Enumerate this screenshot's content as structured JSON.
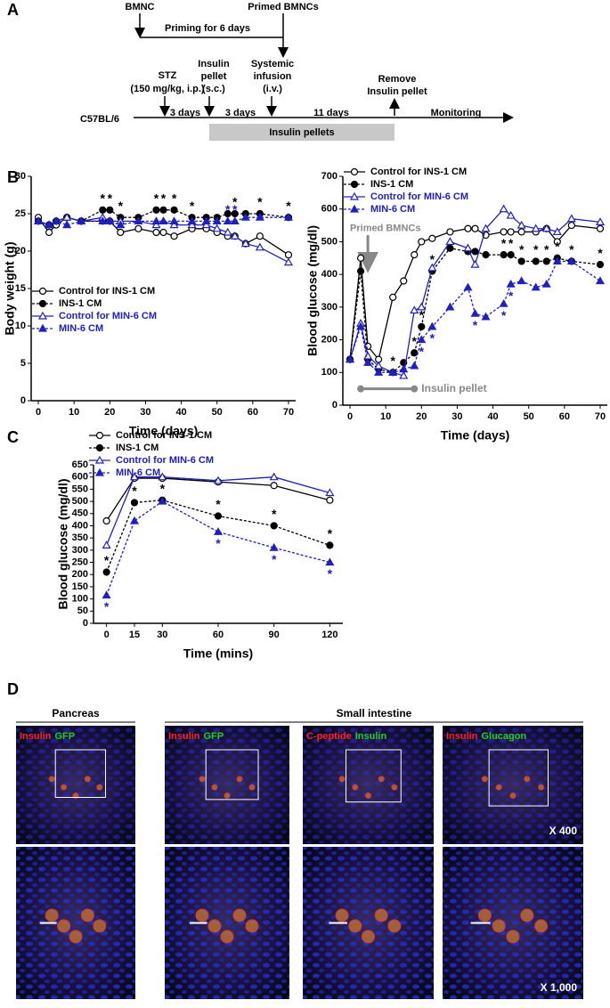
{
  "panel_labels": [
    "A",
    "B",
    "C",
    "D"
  ],
  "timeline": {
    "bmnc": "BMNC",
    "primed": "Primed BMNCs",
    "priming": "Priming for 6 days",
    "stz": [
      "STZ",
      "(150 mg/kg, i.p.)"
    ],
    "pellet": [
      "Insulin",
      "pellet",
      "(s.c.)"
    ],
    "infusion": [
      "Systemic",
      "infusion",
      "(i.v.)"
    ],
    "remove": [
      "Remove",
      "Insulin pellet"
    ],
    "strain": "C57BL/6",
    "intervals": [
      "3 days",
      "3 days",
      "11 days"
    ],
    "monitoring": "Monitoring",
    "pellets_bar": "Insulin pellets"
  },
  "chart_data": [
    {
      "type": "line",
      "y_label": "Body weight (g)",
      "x_label": "Time (days)",
      "xlim": [
        -2,
        72
      ],
      "ylim": [
        0,
        30
      ],
      "xticks": [
        0,
        10,
        20,
        30,
        40,
        50,
        60,
        70
      ],
      "yticks": [
        0,
        5,
        10,
        15,
        20,
        25,
        30
      ],
      "x": [
        0,
        3,
        5,
        8,
        12,
        18,
        20,
        23,
        28,
        33,
        35,
        38,
        43,
        47,
        50,
        53,
        55,
        58,
        62,
        70
      ],
      "series": [
        {
          "name": "Control for INS-1 CM",
          "color": "#000000",
          "marker": "circle",
          "fill": "open",
          "dash": false,
          "values": [
            24.5,
            22.5,
            23.5,
            24.5,
            24,
            24,
            24,
            22.5,
            23,
            22.5,
            22.5,
            22,
            23,
            23,
            22.5,
            22,
            22,
            21,
            22,
            19.5
          ]
        },
        {
          "name": "INS-1 CM",
          "color": "#000000",
          "marker": "circle",
          "fill": "filled",
          "dash": true,
          "values": [
            24,
            23.5,
            24,
            24.5,
            24,
            25.5,
            25.5,
            24.5,
            24.5,
            25.5,
            25.5,
            25.5,
            24.5,
            24.5,
            24.5,
            25,
            25,
            25,
            25,
            24.5
          ],
          "value_labels": [
            null,
            null,
            null,
            null,
            null,
            "*",
            "*",
            "*",
            null,
            "*",
            "*",
            "*",
            "*",
            null,
            null,
            null,
            "*",
            null,
            "*",
            "*"
          ]
        },
        {
          "name": "Control for MIN-6 CM",
          "color": "#2020c0",
          "marker": "triangle",
          "fill": "open",
          "dash": false,
          "values": [
            24,
            23.5,
            24,
            24.5,
            24,
            24.5,
            24,
            24,
            24,
            23.5,
            24,
            23.5,
            23.5,
            23.5,
            23,
            22.5,
            22,
            21,
            20.5,
            18.5
          ]
        },
        {
          "name": "MIN-6 CM",
          "color": "#2020c0",
          "marker": "triangle",
          "fill": "filled",
          "dash": true,
          "values": [
            24,
            23.5,
            24,
            23.5,
            24,
            24,
            24,
            23.5,
            24,
            24,
            24,
            24,
            24,
            24,
            24,
            24,
            24,
            24.5,
            24.5,
            24.5
          ],
          "value_labels": [
            null,
            null,
            null,
            null,
            null,
            null,
            null,
            null,
            null,
            null,
            null,
            null,
            null,
            null,
            null,
            "*",
            "*",
            null,
            null,
            null
          ]
        }
      ]
    },
    {
      "type": "line",
      "y_label": "Blood glucose (mg/dl)",
      "x_label": "Time (days)",
      "xlim": [
        -2,
        72
      ],
      "ylim": [
        0,
        700
      ],
      "xticks": [
        0,
        10,
        20,
        30,
        40,
        50,
        60,
        70
      ],
      "yticks": [
        0,
        100,
        200,
        300,
        400,
        500,
        600,
        700
      ],
      "annotations": [
        "Primed BMNCs",
        "Insulin pellet"
      ],
      "x": [
        0,
        3,
        5,
        8,
        12,
        15,
        18,
        20,
        23,
        28,
        33,
        35,
        38,
        43,
        45,
        48,
        52,
        55,
        58,
        62,
        70
      ],
      "series": [
        {
          "name": "Control for INS-1 CM",
          "color": "#000000",
          "marker": "circle",
          "fill": "open",
          "dash": false,
          "values": [
            140,
            450,
            180,
            140,
            330,
            380,
            460,
            500,
            510,
            530,
            540,
            540,
            520,
            530,
            530,
            530,
            530,
            540,
            500,
            550,
            540
          ]
        },
        {
          "name": "INS-1 CM",
          "color": "#000000",
          "marker": "circle",
          "fill": "filled",
          "dash": true,
          "values": [
            140,
            410,
            140,
            110,
            100,
            130,
            160,
            240,
            410,
            480,
            470,
            470,
            460,
            460,
            460,
            440,
            440,
            440,
            450,
            440,
            430
          ],
          "value_labels": [
            null,
            null,
            null,
            null,
            "*",
            null,
            "*",
            "*",
            "*",
            null,
            null,
            null,
            null,
            "*",
            "*",
            "*",
            "*",
            "*",
            "*",
            "*",
            "*"
          ]
        },
        {
          "name": "Control for MIN-6 CM",
          "color": "#2020c0",
          "marker": "triangle",
          "fill": "open",
          "dash": false,
          "values": [
            140,
            250,
            150,
            120,
            100,
            90,
            290,
            300,
            420,
            500,
            480,
            430,
            540,
            600,
            580,
            550,
            540,
            540,
            530,
            570,
            560
          ]
        },
        {
          "name": "MIN-6 CM",
          "color": "#2020c0",
          "marker": "triangle",
          "fill": "filled",
          "dash": true,
          "values": [
            140,
            240,
            130,
            100,
            100,
            110,
            120,
            200,
            240,
            300,
            360,
            280,
            270,
            310,
            370,
            380,
            360,
            370,
            440,
            440,
            380
          ],
          "value_labels": [
            null,
            null,
            null,
            null,
            null,
            null,
            null,
            "*",
            "*",
            null,
            null,
            "*",
            null,
            "*",
            "*",
            null,
            null,
            null,
            null,
            null,
            null
          ]
        }
      ]
    },
    {
      "type": "line",
      "y_label": "Blood glucose (mg/dl)",
      "x_label": "Time (mins)",
      "xlim": [
        -7,
        127
      ],
      "ylim": [
        0,
        650
      ],
      "xticks": [
        0,
        15,
        30,
        60,
        90,
        120
      ],
      "yticks": [
        0,
        50,
        100,
        150,
        200,
        250,
        300,
        350,
        400,
        450,
        500,
        550,
        600,
        650
      ],
      "x": [
        0,
        15,
        30,
        60,
        90,
        120
      ],
      "series": [
        {
          "name": "Control for INS-1 CM",
          "color": "#000000",
          "marker": "circle",
          "fill": "open",
          "dash": false,
          "values": [
            420,
            595,
            595,
            580,
            565,
            505
          ]
        },
        {
          "name": "INS-1 CM",
          "color": "#000000",
          "marker": "circle",
          "fill": "filled",
          "dash": true,
          "values": [
            210,
            495,
            505,
            440,
            400,
            320
          ],
          "value_labels": [
            "*",
            "*",
            "*",
            "*",
            "*",
            "*"
          ]
        },
        {
          "name": "Control for MIN-6 CM",
          "color": "#2020c0",
          "marker": "triangle",
          "fill": "open",
          "dash": false,
          "values": [
            320,
            600,
            600,
            585,
            600,
            535
          ]
        },
        {
          "name": "MIN-6 CM",
          "color": "#2020c0",
          "marker": "triangle",
          "fill": "filled",
          "dash": true,
          "values": [
            115,
            420,
            500,
            375,
            310,
            250
          ],
          "value_labels": [
            "*",
            null,
            null,
            "*",
            "*",
            "*"
          ]
        }
      ]
    }
  ],
  "micrographs": {
    "headers": [
      "Pancreas",
      "Small intestine"
    ],
    "panels": [
      {
        "stains": [
          {
            "text": "Insulin",
            "color": "#ff2020"
          },
          {
            "text": "GFP",
            "color": "#20d020"
          }
        ]
      },
      {
        "stains": [
          {
            "text": "Insulin",
            "color": "#ff2020"
          },
          {
            "text": "GFP",
            "color": "#20d020"
          }
        ]
      },
      {
        "stains": [
          {
            "text": "C-peptide",
            "color": "#ff2020"
          },
          {
            "text": "Insulin",
            "color": "#20d020"
          }
        ]
      },
      {
        "stains": [
          {
            "text": "Insulin",
            "color": "#ff2020"
          },
          {
            "text": "Glucagon",
            "color": "#20d020"
          }
        ]
      }
    ],
    "magnifications": [
      "X 400",
      "X 1,000"
    ]
  }
}
